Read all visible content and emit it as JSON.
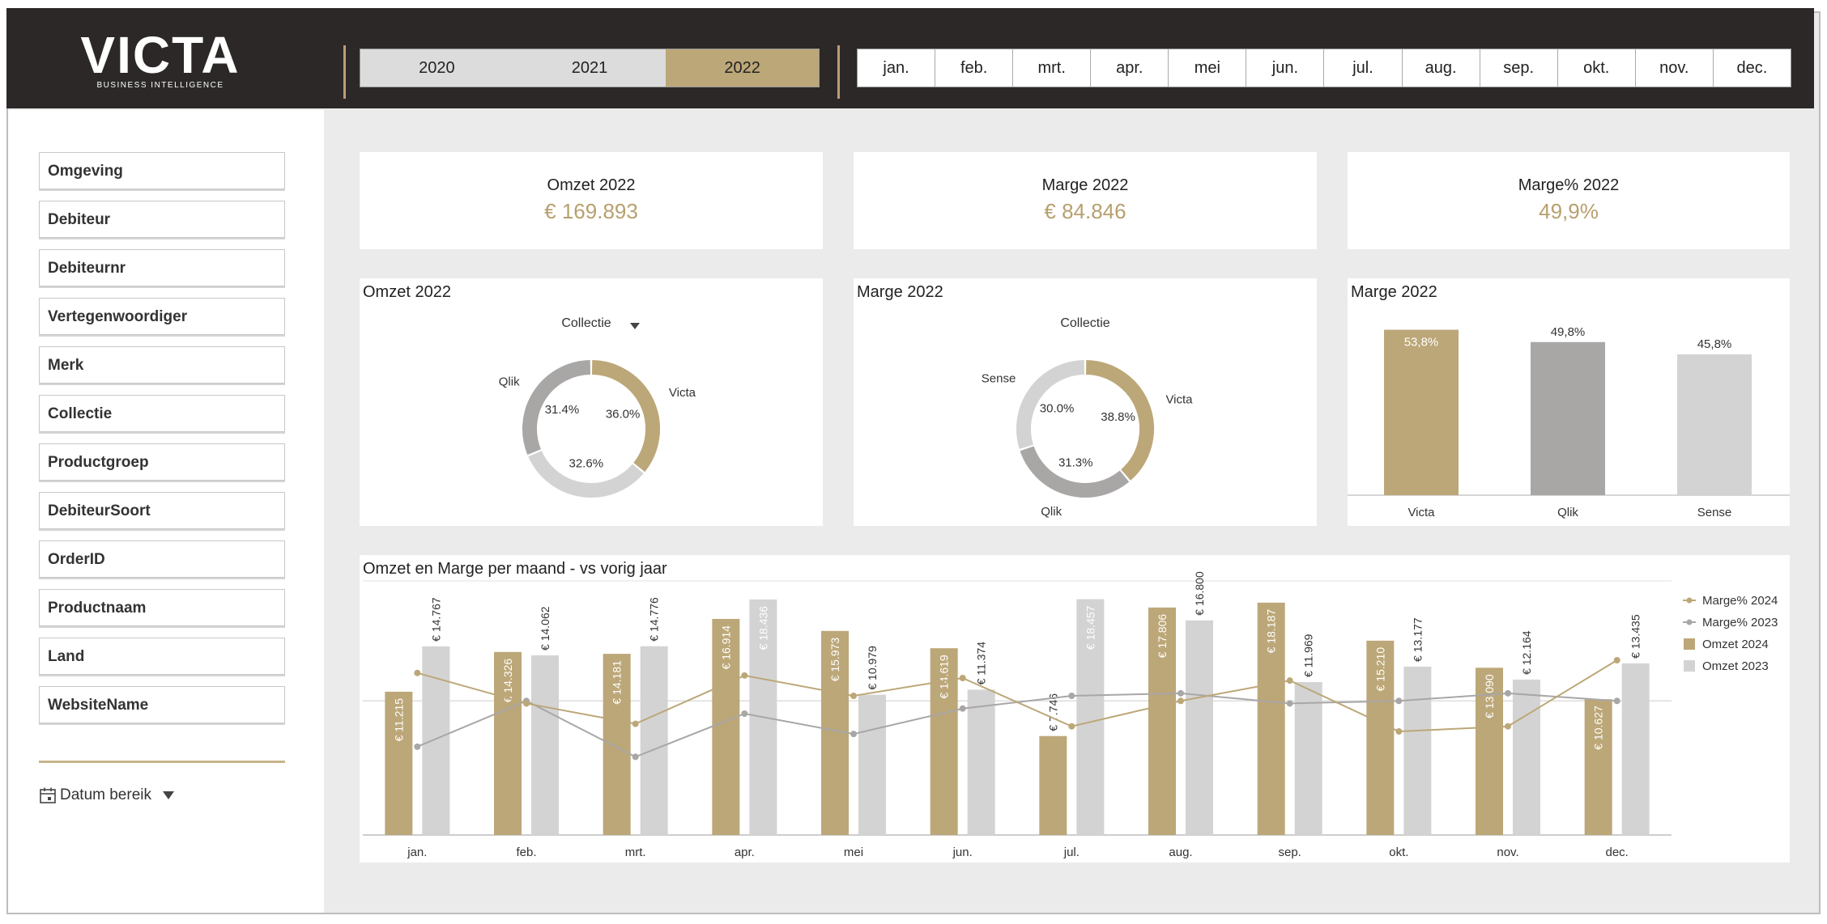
{
  "header": {
    "logo": {
      "main": "VICTA",
      "sub": "BUSINESS INTELLIGENCE"
    },
    "years": [
      {
        "label": "2020",
        "active": false
      },
      {
        "label": "2021",
        "active": false
      },
      {
        "label": "2022",
        "active": true
      }
    ],
    "months": [
      "jan.",
      "feb.",
      "mrt.",
      "apr.",
      "mei",
      "jun.",
      "jul.",
      "aug.",
      "sep.",
      "okt.",
      "nov.",
      "dec."
    ]
  },
  "sidebar": {
    "filters": [
      "Omgeving",
      "Debiteur",
      "Debiteurnr",
      "Vertegenwoordiger",
      "Merk",
      "Collectie",
      "Productgroep",
      "DebiteurSoort",
      "OrderID",
      "Productnaam",
      "Land",
      "WebsiteName"
    ],
    "date_range_label": "Datum bereik"
  },
  "kpis": [
    {
      "title": "Omzet 2022",
      "value": "€ 169.893"
    },
    {
      "title": "Marge 2022",
      "value": "€ 84.846"
    },
    {
      "title": "Marge% 2022",
      "value": "49,9%"
    }
  ],
  "colors": {
    "gold": "#bca778",
    "darkgrey": "#a9a6a6",
    "lightgrey": "#d4d3d4",
    "header": "#2b2827"
  },
  "chart_data": [
    {
      "type": "pie",
      "title": "Omzet 2022",
      "dimension_label": "Collectie",
      "slices": [
        {
          "label": "Victa",
          "value": 36.0,
          "display": "36.0%",
          "color": "#bca778"
        },
        {
          "label": "",
          "value": 32.6,
          "display": "32.6%",
          "color": "#d4d3d4"
        },
        {
          "label": "Qlik",
          "value": 31.4,
          "display": "31.4%",
          "color": "#a9a6a6"
        }
      ]
    },
    {
      "type": "pie",
      "title": "Marge 2022",
      "dimension_label": "Collectie",
      "slices": [
        {
          "label": "Victa",
          "value": 38.8,
          "display": "38.8%",
          "color": "#bca778"
        },
        {
          "label": "Qlik",
          "value": 31.3,
          "display": "31.3%",
          "color": "#a9a6a6"
        },
        {
          "label": "Sense",
          "value": 30.0,
          "display": "30.0%",
          "color": "#d4d3d4"
        }
      ]
    },
    {
      "type": "bar",
      "title": "Marge 2022",
      "categories": [
        "Victa",
        "Qlik",
        "Sense"
      ],
      "values": [
        53.8,
        49.8,
        45.8
      ],
      "labels": [
        "53,8%",
        "49,8%",
        "45,8%"
      ],
      "colors": [
        "#bca778",
        "#a9a6a6",
        "#d4d3d4"
      ]
    },
    {
      "type": "bar",
      "title": "Omzet en Marge per maand - vs vorig jaar",
      "categories": [
        "jan.",
        "feb.",
        "mrt.",
        "apr.",
        "mei",
        "jun.",
        "jul.",
        "aug.",
        "sep.",
        "okt.",
        "nov.",
        "dec."
      ],
      "ylim": [
        0,
        19000
      ],
      "series": [
        {
          "name": "Omzet 2024",
          "kind": "bar",
          "color": "#bca778",
          "values": [
            11215,
            14326,
            14181,
            16914,
            15973,
            14619,
            7746,
            17806,
            18187,
            15210,
            13090,
            10627
          ],
          "labels": [
            "€ 11.215",
            "€ 14.326",
            "€ 14.181",
            "€ 16.914",
            "€ 15.973",
            "€ 14.619",
            "€ 7.746",
            "€ 17.806",
            "€ 18.187",
            "€ 15.210",
            "€ 13.090",
            "€ 10.627"
          ]
        },
        {
          "name": "Omzet 2023",
          "kind": "bar",
          "color": "#d4d3d4",
          "values": [
            14767,
            14062,
            14776,
            18436,
            10979,
            11374,
            18457,
            16800,
            11969,
            13177,
            12164,
            13435
          ],
          "labels": [
            "€ 14.767",
            "€ 14.062",
            "€ 14.776",
            "€ 18.436",
            "€ 10.979",
            "€ 11.374",
            "€ 18.457",
            "€ 16.800",
            "€ 11.969",
            "€ 13.177",
            "€ 12.164",
            "€ 13.435"
          ]
        },
        {
          "name": "Marge% 2024",
          "kind": "line",
          "color": "#bca778",
          "values": [
            55.5,
            49.5,
            45.5,
            55.0,
            51.0,
            54.5,
            45.0,
            50.0,
            54.0,
            44.0,
            45.0,
            58.0
          ]
        },
        {
          "name": "Marge% 2023",
          "kind": "line",
          "color": "#a9a6a6",
          "values": [
            41.0,
            50.0,
            39.0,
            47.5,
            43.5,
            48.5,
            51.0,
            51.5,
            49.5,
            50.0,
            51.5,
            50.0
          ]
        }
      ]
    }
  ]
}
